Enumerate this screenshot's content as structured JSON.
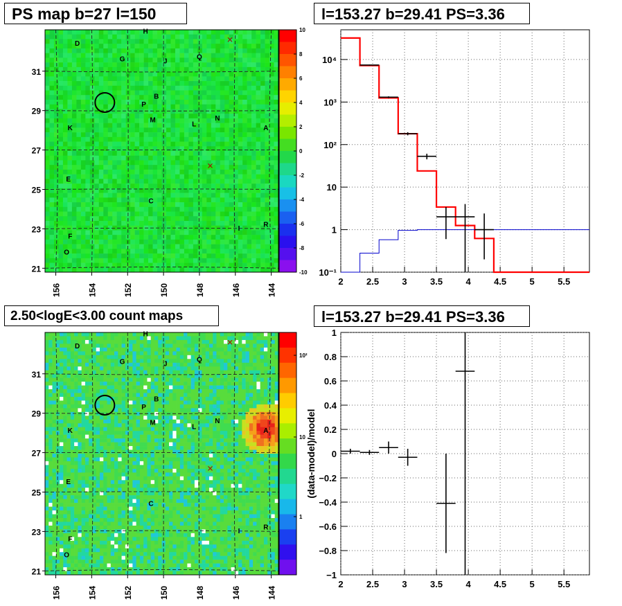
{
  "titles": {
    "psmap": "PS map b=27 l=150",
    "spectrum": "l=153.27 b=29.41 PS=3.36",
    "countmap": "2.50<logE<3.00 count maps",
    "residual": "l=153.27 b=29.41 PS=3.36"
  },
  "colors": {
    "accent_red": "#ff0000",
    "model_blue": "#0000cc",
    "data_black": "#000000",
    "map_green": "#33dd55"
  },
  "maps": {
    "x_ticks": [
      "156",
      "154",
      "152",
      "150",
      "148",
      "146",
      "144"
    ],
    "y_ticks": [
      "31",
      "29",
      "27",
      "25",
      "23",
      "21"
    ],
    "psmap_colorbar_ticks": [
      "10",
      "8",
      "6",
      "4",
      "2",
      "0",
      "-2",
      "-4",
      "-6",
      "-8",
      "-10"
    ],
    "countmap_colorbar_ticks": [
      "10²",
      "10",
      "1"
    ],
    "source_labels": [
      {
        "label": "D",
        "l": 154.8,
        "b": 32.3
      },
      {
        "label": "H",
        "l": 151.0,
        "b": 32.9
      },
      {
        "label": "G",
        "l": 152.3,
        "b": 31.5
      },
      {
        "label": "J",
        "l": 149.9,
        "b": 31.4
      },
      {
        "label": "Q",
        "l": 148.0,
        "b": 31.6
      },
      {
        "label": "B",
        "l": 150.4,
        "b": 29.6
      },
      {
        "label": "P",
        "l": 151.1,
        "b": 29.2
      },
      {
        "label": "M",
        "l": 150.6,
        "b": 28.4
      },
      {
        "label": "L",
        "l": 148.3,
        "b": 28.2
      },
      {
        "label": "N",
        "l": 147.0,
        "b": 28.5
      },
      {
        "label": "A",
        "l": 144.3,
        "b": 28.0
      },
      {
        "label": "K",
        "l": 155.2,
        "b": 28.0
      },
      {
        "label": "E",
        "l": 155.3,
        "b": 25.4
      },
      {
        "label": "C",
        "l": 150.7,
        "b": 24.3
      },
      {
        "label": "I",
        "l": 145.8,
        "b": 22.9
      },
      {
        "label": "R",
        "l": 144.3,
        "b": 23.1
      },
      {
        "label": "F",
        "l": 155.2,
        "b": 22.5
      },
      {
        "label": "O",
        "l": 155.4,
        "b": 21.7
      }
    ],
    "cross_markers": [
      {
        "l": 146.3,
        "b": 32.6
      },
      {
        "l": 147.4,
        "b": 26.2
      }
    ],
    "candidate_circle": {
      "l": 153.27,
      "b": 29.41
    }
  },
  "chart_data": [
    {
      "type": "heatmap",
      "title": "PS map b=27 l=150",
      "xlim": [
        156.6,
        143.6
      ],
      "ylim": [
        20.8,
        33.1
      ],
      "zlim": [
        -10,
        10
      ]
    },
    {
      "type": "line",
      "title": "l=153.27 b=29.41 PS=3.36",
      "xlim": [
        2,
        5.9
      ],
      "ylim": [
        0.1,
        50000
      ],
      "yscale": "log",
      "grid": true,
      "x_ticks": [
        2,
        2.5,
        3,
        3.5,
        4,
        4.5,
        5,
        5.5
      ],
      "y_ticks": [
        0.1,
        1,
        10,
        100,
        1000,
        10000
      ],
      "y_tick_labels": [
        "10⁻¹",
        "1",
        "10",
        "10²",
        "10³",
        "10⁴"
      ],
      "series": [
        {
          "role": "total-model",
          "color": "#ff0000",
          "edges": [
            2.0,
            2.3,
            2.6,
            2.9,
            3.2,
            3.5,
            3.8,
            4.1,
            4.4,
            5.9
          ],
          "values": [
            32000,
            7200,
            1250,
            180,
            24,
            3.4,
            1.25,
            0.62,
            0.1
          ]
        },
        {
          "role": "background-model",
          "color": "#0000cc",
          "edges": [
            2.0,
            2.3,
            2.6,
            2.9,
            3.2,
            3.5,
            3.8,
            4.1,
            4.4,
            5.9
          ],
          "values": [
            0.1,
            0.28,
            0.58,
            0.96,
            1.0,
            1.0,
            1.0,
            1.0,
            1.0
          ]
        },
        {
          "role": "data",
          "color": "#000000",
          "points": [
            {
              "x": 2.45,
              "y": 7400,
              "xerr": 0.15,
              "ylo": 7200,
              "yhi": 7600
            },
            {
              "x": 2.75,
              "y": 1300,
              "xerr": 0.15,
              "ylo": 1240,
              "yhi": 1360
            },
            {
              "x": 3.05,
              "y": 180,
              "xerr": 0.15,
              "ylo": 165,
              "yhi": 195
            },
            {
              "x": 3.35,
              "y": 53,
              "xerr": 0.15,
              "ylo": 45,
              "yhi": 61
            },
            {
              "x": 3.65,
              "y": 2.0,
              "xerr": 0.15,
              "ylo": 0.6,
              "yhi": 3.4
            },
            {
              "x": 3.95,
              "y": 2.0,
              "xerr": 0.15,
              "ylo": 0.1,
              "yhi": 4.0
            },
            {
              "x": 4.25,
              "y": 1.0,
              "xerr": 0.15,
              "ylo": 0.2,
              "yhi": 2.4
            }
          ]
        }
      ]
    },
    {
      "type": "heatmap",
      "title": "2.50<logE<3.00 count maps",
      "xlim": [
        156.6,
        143.6
      ],
      "ylim": [
        20.8,
        33.1
      ],
      "zscale": "log",
      "hotspot": {
        "l": 144.3,
        "b": 28.2
      }
    },
    {
      "type": "scatter",
      "title": "l=153.27 b=29.41 PS=3.36",
      "ylabel": "(data-model)/model",
      "xlim": [
        2,
        5.9
      ],
      "ylim": [
        -1,
        1
      ],
      "grid": true,
      "x_ticks": [
        2,
        2.5,
        3,
        3.5,
        4,
        4.5,
        5,
        5.5
      ],
      "y_ticks": [
        -1,
        -0.8,
        -0.6,
        -0.4,
        -0.2,
        0,
        0.2,
        0.4,
        0.6,
        0.8,
        1
      ],
      "points": [
        {
          "x": 2.15,
          "y": 0.02,
          "xerr": 0.15,
          "ylo": 0.0,
          "yhi": 0.04
        },
        {
          "x": 2.45,
          "y": 0.01,
          "xerr": 0.15,
          "ylo": -0.01,
          "yhi": 0.03
        },
        {
          "x": 2.75,
          "y": 0.05,
          "xerr": 0.15,
          "ylo": 0.0,
          "yhi": 0.1
        },
        {
          "x": 3.05,
          "y": -0.03,
          "xerr": 0.15,
          "ylo": -0.1,
          "yhi": 0.04
        },
        {
          "x": 3.65,
          "y": -0.41,
          "xerr": 0.15,
          "ylo": -0.82,
          "yhi": 0.0
        },
        {
          "x": 3.95,
          "y": 0.68,
          "xerr": 0.15,
          "ylo": -1.0,
          "yhi": 1.0
        }
      ]
    }
  ]
}
